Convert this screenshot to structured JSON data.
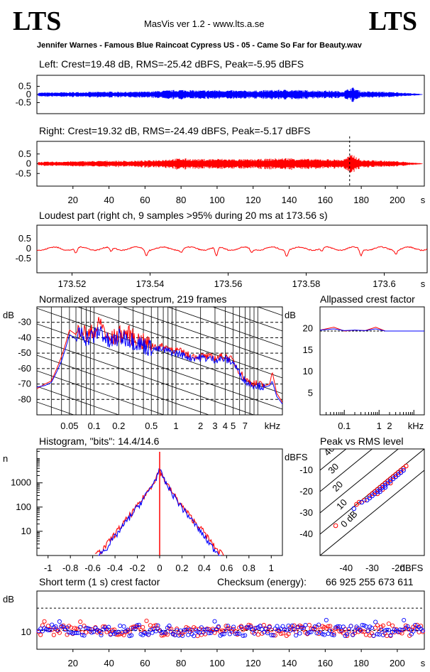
{
  "header": {
    "logo_left": "LTS",
    "logo_right": "LTS",
    "app_title": "MasVis ver 1.2 - www.lts.a.se",
    "file_name": "Jennifer Warnes - Famous Blue Raincoat Cypress US - 05 - Came So Far for Beauty.wav"
  },
  "colors": {
    "left": "#0000ff",
    "right": "#ff0000",
    "grid": "#000000"
  },
  "chart_data": [
    {
      "id": "left_waveform",
      "type": "area",
      "title": "Left: Crest=19.48 dB, RMS=-25.42 dBFS, Peak=-5.95 dBFS",
      "yticks": [
        "0.5",
        "0",
        "-0.5"
      ],
      "ylim": [
        -1,
        1
      ],
      "xlim": [
        0,
        215
      ],
      "envelope": {
        "x": [
          0,
          10,
          20,
          30,
          40,
          50,
          60,
          70,
          80,
          90,
          100,
          110,
          120,
          130,
          140,
          150,
          160,
          170,
          175,
          180,
          190,
          200,
          210,
          215
        ],
        "y": [
          0.12,
          0.13,
          0.15,
          0.16,
          0.18,
          0.17,
          0.18,
          0.24,
          0.3,
          0.25,
          0.28,
          0.25,
          0.24,
          0.28,
          0.3,
          0.26,
          0.25,
          0.2,
          0.45,
          0.2,
          0.18,
          0.14,
          0.06,
          0.01
        ]
      }
    },
    {
      "id": "right_waveform",
      "type": "area",
      "title": "Right: Crest=19.32 dB, RMS=-24.49 dBFS, Peak=-5.17 dBFS",
      "yticks": [
        "0.5",
        "0",
        "-0.5"
      ],
      "ylim": [
        -1,
        1
      ],
      "xlim": [
        0,
        215
      ],
      "xticks": [
        "20",
        "40",
        "60",
        "80",
        "100",
        "120",
        "140",
        "160",
        "180",
        "200"
      ],
      "xunit": "s",
      "marker_x": 173.56,
      "envelope": {
        "x": [
          0,
          10,
          20,
          30,
          40,
          50,
          60,
          70,
          80,
          90,
          100,
          110,
          120,
          130,
          140,
          150,
          160,
          170,
          175,
          180,
          190,
          200,
          210,
          215
        ],
        "y": [
          0.1,
          0.11,
          0.13,
          0.14,
          0.16,
          0.15,
          0.17,
          0.22,
          0.28,
          0.24,
          0.26,
          0.24,
          0.23,
          0.27,
          0.3,
          0.25,
          0.24,
          0.22,
          0.5,
          0.2,
          0.17,
          0.13,
          0.05,
          0.01
        ]
      }
    },
    {
      "id": "loudest_part",
      "type": "line",
      "title": "Loudest part (right ch, 9 samples >95% during 20 ms at 173.56 s)",
      "yticks": [
        "0.5",
        "0",
        "-0.5"
      ],
      "xticks": [
        "173.52",
        "173.54",
        "173.56",
        "173.58",
        "173.6"
      ],
      "xunit": "s",
      "xlim": [
        173.511,
        173.611
      ],
      "ylim": [
        -1,
        1
      ],
      "dips_at": [
        173.521,
        173.53,
        173.539,
        173.548,
        173.557,
        173.566,
        173.575,
        173.584,
        173.594,
        173.603
      ],
      "dip_depth": [
        -0.25,
        -0.2,
        -0.3,
        -0.15,
        -0.45,
        -0.2,
        -0.3,
        -0.15,
        -0.35,
        -0.2
      ]
    },
    {
      "id": "average_spectrum",
      "type": "line",
      "title": "Normalized average spectrum, 219 frames",
      "yunit": "dB",
      "yticks": [
        "-30",
        "-40",
        "-50",
        "-60",
        "-70",
        "-80"
      ],
      "xticks": [
        "0.05",
        "0.1",
        "0.2",
        "0.5",
        "1",
        "2",
        "3",
        "4",
        "5",
        "7"
      ],
      "xunit": "kHz",
      "ylim": [
        -90,
        -20
      ],
      "xlim_khz": [
        0.02,
        20
      ],
      "series": [
        {
          "color": "#ff0000",
          "x": [
            0.02,
            0.025,
            0.03,
            0.035,
            0.04,
            0.05,
            0.06,
            0.07,
            0.08,
            0.1,
            0.12,
            0.15,
            0.2,
            0.25,
            0.3,
            0.4,
            0.5,
            0.7,
            1,
            1.5,
            2,
            3,
            4,
            5,
            6,
            7,
            8,
            10,
            12,
            14,
            15,
            17,
            20
          ],
          "y": [
            -73,
            -70,
            -68,
            -60,
            -52,
            -35,
            -38,
            -33,
            -39,
            -36,
            -30,
            -42,
            -38,
            -37,
            -40,
            -43,
            -45,
            -46,
            -48,
            -52,
            -52,
            -53,
            -52,
            -55,
            -62,
            -67,
            -69,
            -70,
            -71,
            -70,
            -62,
            -76,
            -82
          ]
        },
        {
          "color": "#0000ff",
          "x": [
            0.02,
            0.025,
            0.03,
            0.035,
            0.04,
            0.05,
            0.06,
            0.07,
            0.08,
            0.1,
            0.12,
            0.15,
            0.2,
            0.25,
            0.3,
            0.4,
            0.5,
            0.7,
            1,
            1.5,
            2,
            3,
            4,
            5,
            6,
            7,
            8,
            10,
            12,
            14,
            15,
            17,
            20
          ],
          "y": [
            -72,
            -71,
            -69,
            -62,
            -55,
            -38,
            -41,
            -36,
            -40,
            -39,
            -35,
            -44,
            -40,
            -40,
            -42,
            -45,
            -47,
            -48,
            -50,
            -53,
            -53,
            -54,
            -54,
            -56,
            -63,
            -68,
            -70,
            -71,
            -72,
            -71,
            -68,
            -78,
            -83
          ]
        }
      ]
    },
    {
      "id": "allpassed_crest",
      "type": "line",
      "title": "Allpassed crest factor",
      "yunit": "dB",
      "yticks": [
        "20",
        "15",
        "10",
        "5"
      ],
      "xticks": [
        "0.1",
        "1",
        "2"
      ],
      "xunit": "kHz",
      "ylim": [
        0,
        25
      ],
      "xlim_khz": [
        0.02,
        20
      ],
      "series": [
        {
          "color": "#ff0000",
          "x": [
            0.02,
            0.05,
            0.1,
            0.2,
            0.4,
            0.8,
            1.5,
            3,
            20
          ],
          "y": [
            19.6,
            20.3,
            19.4,
            19.6,
            19.5,
            20.3,
            19.4,
            19.4,
            19.4
          ]
        },
        {
          "color": "#0000ff",
          "x": [
            0.02,
            0.05,
            0.1,
            0.2,
            0.4,
            0.8,
            1.5,
            3,
            20
          ],
          "y": [
            19.6,
            19.9,
            19.5,
            19.6,
            19.5,
            19.9,
            19.4,
            19.4,
            19.4
          ]
        }
      ],
      "reference": 19.4
    },
    {
      "id": "histogram",
      "type": "line",
      "title": "Histogram, \"bits\": 14.4/14.6",
      "ylabel": "n",
      "yticks": [
        "1000",
        "100",
        "10"
      ],
      "xticks": [
        "-1",
        "-0.8",
        "-0.6",
        "-0.4",
        "-0.2",
        "0",
        "0.2",
        "0.4",
        "0.6",
        "0.8",
        "1"
      ],
      "xlim": [
        -1.1,
        1.1
      ],
      "ylog_range": [
        0,
        4.4
      ],
      "series": [
        {
          "color": "#ff0000",
          "x": [
            -0.58,
            -0.5,
            -0.4,
            -0.3,
            -0.2,
            -0.1,
            -0.05,
            0,
            0.05,
            0.1,
            0.2,
            0.3,
            0.4,
            0.5,
            0.58
          ],
          "y": [
            1,
            2,
            8,
            30,
            110,
            500,
            1200,
            3500,
            1200,
            500,
            110,
            30,
            9,
            2,
            1
          ]
        },
        {
          "color": "#0000ff",
          "x": [
            -0.55,
            -0.48,
            -0.4,
            -0.3,
            -0.2,
            -0.1,
            -0.05,
            0,
            0.05,
            0.1,
            0.2,
            0.3,
            0.4,
            0.48,
            0.55
          ],
          "y": [
            1,
            2,
            6,
            25,
            100,
            450,
            1100,
            3500,
            1100,
            450,
            95,
            25,
            6,
            2,
            1
          ]
        }
      ]
    },
    {
      "id": "peak_vs_rms",
      "type": "scatter",
      "title": "Peak vs RMS level",
      "yunit": "dBFS",
      "xunit": "dBFS",
      "yticks": [
        "-10",
        "-20",
        "-30",
        "-40"
      ],
      "xticks": [
        "-40",
        "-30",
        "-20"
      ],
      "xlim": [
        -50,
        -10
      ],
      "ylim": [
        -50,
        0
      ],
      "diagonal_labels": [
        "40",
        "30",
        "20",
        "10",
        "0 dB"
      ],
      "series": [
        {
          "color": "#ff0000",
          "x": [
            -44,
            -36,
            -33,
            -31,
            -30,
            -29,
            -28,
            -27,
            -26,
            -25,
            -24,
            -23,
            -22,
            -21,
            -20,
            -19,
            -18,
            -17,
            -35,
            -28,
            -26,
            -23,
            -21,
            -19
          ],
          "y": [
            -36,
            -26,
            -24,
            -22,
            -21,
            -20,
            -19,
            -18,
            -17,
            -16,
            -15,
            -14,
            -13,
            -12,
            -11,
            -10,
            -9,
            -8,
            -25,
            -21,
            -19,
            -16,
            -13,
            -11
          ]
        },
        {
          "color": "#0000ff",
          "x": [
            -37,
            -34,
            -32,
            -30,
            -29,
            -28,
            -27,
            -26,
            -25,
            -24,
            -23,
            -22,
            -21,
            -20,
            -19,
            -18,
            -31,
            -27,
            -25
          ],
          "y": [
            -28,
            -25,
            -24,
            -22,
            -21,
            -20,
            -19,
            -18,
            -17,
            -16,
            -15,
            -14,
            -13,
            -12,
            -11,
            -10,
            -23,
            -20,
            -18
          ]
        }
      ]
    },
    {
      "id": "short_term_crest",
      "type": "scatter",
      "title": "Short term (1 s) crest factor",
      "yunit": "dB",
      "yticks": [
        "10"
      ],
      "xticks": [
        "20",
        "40",
        "60",
        "80",
        "100",
        "120",
        "140",
        "160",
        "180",
        "200"
      ],
      "xunit": "s",
      "xlim": [
        0,
        215
      ],
      "ylim": [
        5,
        22
      ],
      "reference": 17,
      "typical": 10.5
    }
  ],
  "checksum": {
    "label": "Checksum (energy):",
    "value": "66 925 255 673 611"
  }
}
